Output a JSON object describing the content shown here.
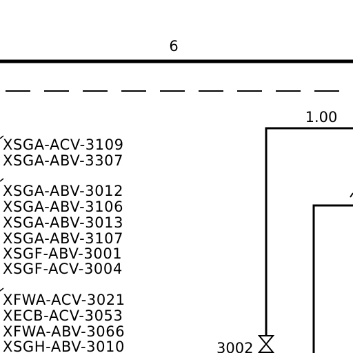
{
  "drawing": {
    "top_number": "6",
    "line_value": "1.00",
    "valve_tag": "3002",
    "tag_groups": [
      [
        "XSGA-ACV-3109",
        "XSGA-ABV-3307"
      ],
      [
        "XSGA-ABV-3012",
        "XSGA-ABV-3106",
        "XSGA-ABV-3013",
        "XSGA-ABV-3107",
        "XSGF-ABV-3001",
        "XSGF-ACV-3004"
      ],
      [
        "XFWA-ACV-3021",
        "XECB-ACV-3053",
        "XFWA-ABV-3066",
        "XSGH-ABV-3010"
      ]
    ]
  }
}
